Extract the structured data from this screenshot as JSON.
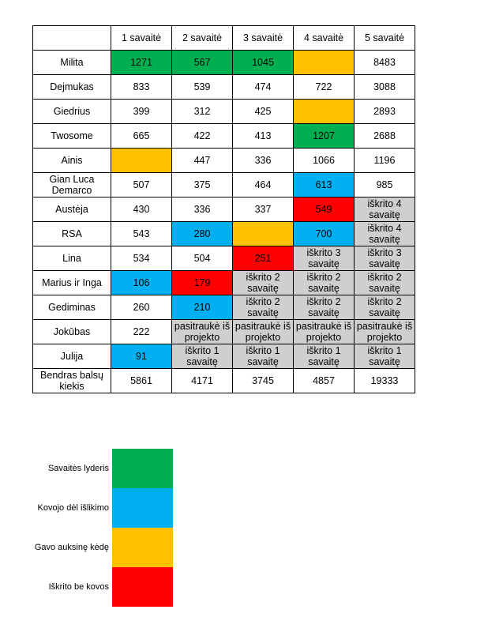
{
  "header": {
    "corner": "",
    "weeks": [
      "1 savaitė",
      "2 savaitė",
      "3 savaitė",
      "4 savaitė",
      "5 savaitė"
    ]
  },
  "rows": [
    {
      "name": "Milita",
      "cells": [
        {
          "text": "1271",
          "color": "green"
        },
        {
          "text": "567",
          "color": "green"
        },
        {
          "text": "1045",
          "color": "green"
        },
        {
          "text": "",
          "color": "yellow"
        },
        {
          "text": "8483",
          "color": ""
        }
      ]
    },
    {
      "name": "Dejmukas",
      "cells": [
        {
          "text": "833",
          "color": ""
        },
        {
          "text": "539",
          "color": ""
        },
        {
          "text": "474",
          "color": ""
        },
        {
          "text": "722",
          "color": ""
        },
        {
          "text": "3088",
          "color": ""
        }
      ]
    },
    {
      "name": "Giedrius",
      "cells": [
        {
          "text": "399",
          "color": ""
        },
        {
          "text": "312",
          "color": ""
        },
        {
          "text": "425",
          "color": ""
        },
        {
          "text": "",
          "color": "yellow"
        },
        {
          "text": "2893",
          "color": ""
        }
      ]
    },
    {
      "name": "Twosome",
      "cells": [
        {
          "text": "665",
          "color": ""
        },
        {
          "text": "422",
          "color": ""
        },
        {
          "text": "413",
          "color": ""
        },
        {
          "text": "1207",
          "color": "green"
        },
        {
          "text": "2688",
          "color": ""
        }
      ]
    },
    {
      "name": "Ainis",
      "cells": [
        {
          "text": "",
          "color": "yellow"
        },
        {
          "text": "447",
          "color": ""
        },
        {
          "text": "336",
          "color": ""
        },
        {
          "text": "1066",
          "color": ""
        },
        {
          "text": "1196",
          "color": ""
        }
      ]
    },
    {
      "name": "Gian Luca Demarco",
      "cells": [
        {
          "text": "507",
          "color": ""
        },
        {
          "text": "375",
          "color": ""
        },
        {
          "text": "464",
          "color": ""
        },
        {
          "text": "613",
          "color": "blue"
        },
        {
          "text": "985",
          "color": ""
        }
      ]
    },
    {
      "name": "Austėja",
      "cells": [
        {
          "text": "430",
          "color": ""
        },
        {
          "text": "336",
          "color": ""
        },
        {
          "text": "337",
          "color": ""
        },
        {
          "text": "549",
          "color": "red"
        },
        {
          "text": "iškrito 4 savaitę",
          "color": "grey"
        }
      ]
    },
    {
      "name": "RSA",
      "cells": [
        {
          "text": "543",
          "color": ""
        },
        {
          "text": "280",
          "color": "blue"
        },
        {
          "text": "",
          "color": "yellow"
        },
        {
          "text": "700",
          "color": "blue"
        },
        {
          "text": "iškrito 4 savaitę",
          "color": "grey"
        }
      ]
    },
    {
      "name": "Lina",
      "cells": [
        {
          "text": "534",
          "color": ""
        },
        {
          "text": "504",
          "color": ""
        },
        {
          "text": "251",
          "color": "red"
        },
        {
          "text": "iškrito 3 savaitę",
          "color": "grey"
        },
        {
          "text": "iškrito 3 savaitę",
          "color": "grey"
        }
      ]
    },
    {
      "name": "Marius ir Inga",
      "cells": [
        {
          "text": "106",
          "color": "blue"
        },
        {
          "text": "179",
          "color": "red"
        },
        {
          "text": "iškrito 2 savaitę",
          "color": "grey"
        },
        {
          "text": "iškrito 2 savaitę",
          "color": "grey"
        },
        {
          "text": "iškrito 2 savaitę",
          "color": "grey"
        }
      ]
    },
    {
      "name": "Gediminas",
      "cells": [
        {
          "text": "260",
          "color": ""
        },
        {
          "text": "210",
          "color": "blue"
        },
        {
          "text": "iškrito 2 savaitę",
          "color": "grey"
        },
        {
          "text": "iškrito 2 savaitę",
          "color": "grey"
        },
        {
          "text": "iškrito 2 savaitę",
          "color": "grey"
        }
      ]
    },
    {
      "name": "Jokūbas",
      "cells": [
        {
          "text": "222",
          "color": ""
        },
        {
          "text": "pasitraukė iš projekto",
          "color": "grey"
        },
        {
          "text": "pasitraukė iš projekto",
          "color": "grey"
        },
        {
          "text": "pasitraukė iš projekto",
          "color": "grey"
        },
        {
          "text": "pasitraukė iš projekto",
          "color": "grey"
        }
      ]
    },
    {
      "name": "Julija",
      "cells": [
        {
          "text": "91",
          "color": "blue"
        },
        {
          "text": "iškrito 1 savaitę",
          "color": "grey"
        },
        {
          "text": "iškrito 1 savaitę",
          "color": "grey"
        },
        {
          "text": "iškrito 1 savaitę",
          "color": "grey"
        },
        {
          "text": "iškrito 1 savaitę",
          "color": "grey"
        }
      ]
    },
    {
      "name": "Bendras balsų kiekis",
      "cells": [
        {
          "text": "5861",
          "color": ""
        },
        {
          "text": "4171",
          "color": ""
        },
        {
          "text": "3745",
          "color": ""
        },
        {
          "text": "4857",
          "color": ""
        },
        {
          "text": "19333",
          "color": ""
        }
      ]
    }
  ],
  "legend": [
    {
      "label": "Savaitės lyderis",
      "color": "#00b050"
    },
    {
      "label": "Kovojo dėl išlikimo",
      "color": "#00b0f0"
    },
    {
      "label": "Gavo auksinę kėdę",
      "color": "#ffc000"
    },
    {
      "label": "Iškrito be kovos",
      "color": "#ff0000"
    }
  ],
  "colors": {
    "green": "#00b050",
    "blue": "#00b0f0",
    "yellow": "#ffc000",
    "red": "#ff0000",
    "grey": "#d0cece"
  }
}
